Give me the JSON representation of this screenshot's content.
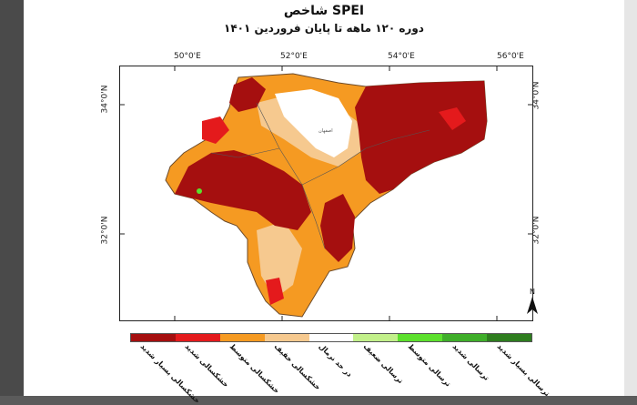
{
  "title": "شاخص SPEI",
  "subtitle": "دوره ۱۲۰ ماهه تا پایان فروردین ۱۴۰۱",
  "longitude_labels": [
    "50°0'E",
    "52°0'E",
    "54°0'E",
    "56°0'E"
  ],
  "latitude_labels": [
    "34°0'N",
    "32°0'N"
  ],
  "north_arrow_label": "N",
  "legend": [
    {
      "label": "خشکسالی بسیار شدید",
      "color": "#a50f0f"
    },
    {
      "label": "خشکسالی شدید",
      "color": "#e41a1c"
    },
    {
      "label": "خشکسالی متوسط",
      "color": "#f59a22"
    },
    {
      "label": "خشکسالی خفیف",
      "color": "#f6c98f"
    },
    {
      "label": "در حد نرمال",
      "color": "#ffffff"
    },
    {
      "label": "ترسالی ضعیف",
      "color": "#c2f08a"
    },
    {
      "label": "ترسالی متوسط",
      "color": "#5ce02d"
    },
    {
      "label": "ترسالی شدید",
      "color": "#3fae2a"
    },
    {
      "label": "ترسالی بسیار شدید",
      "color": "#2e7d1f"
    }
  ],
  "place_label": "اصفهان"
}
